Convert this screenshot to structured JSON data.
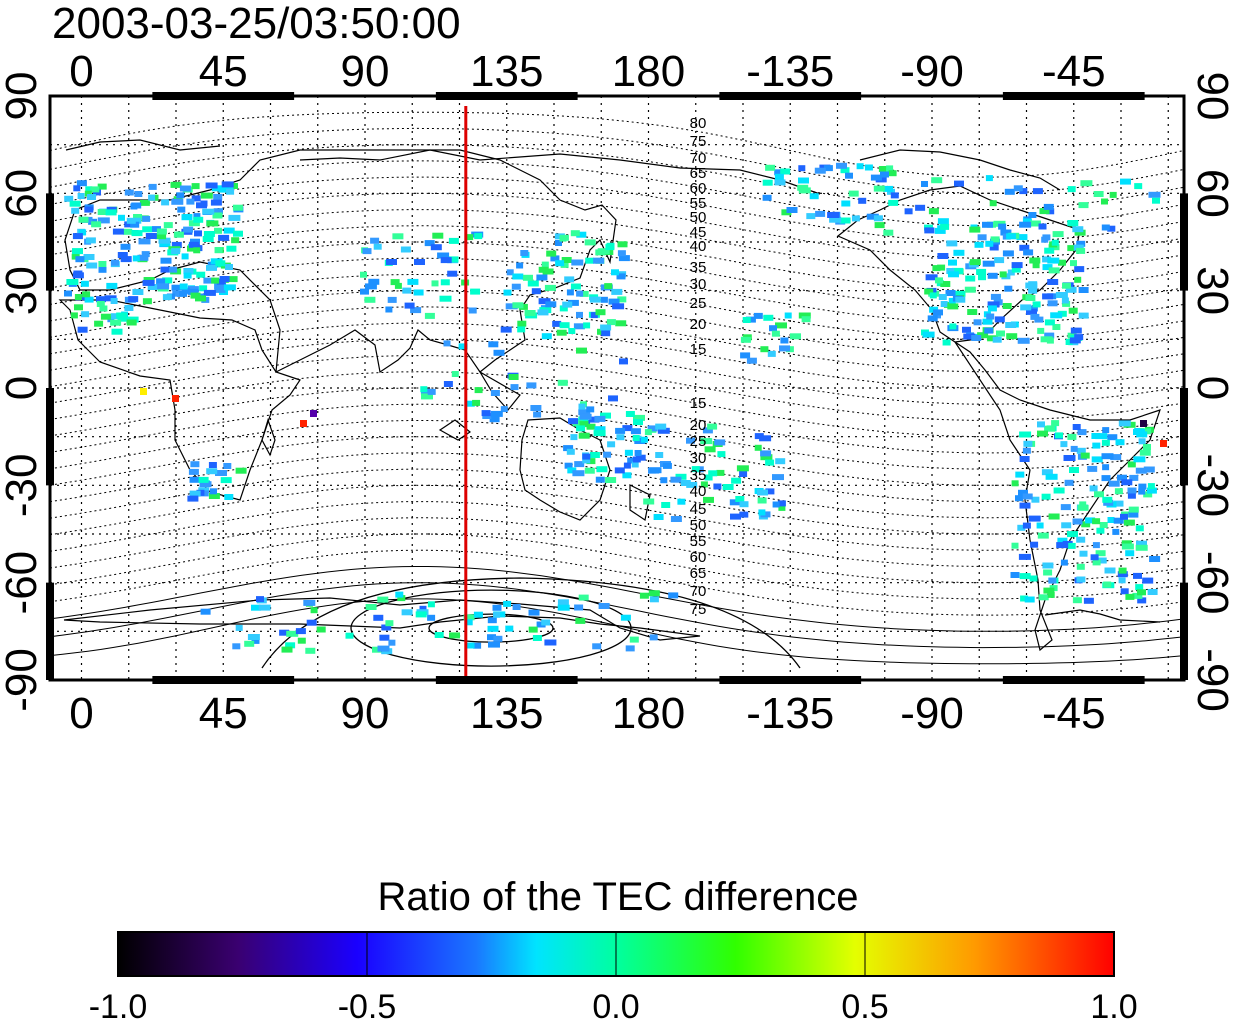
{
  "timestamp": "2003-03-25/03:50:00",
  "lon_tick_labels": [
    "0",
    "45",
    "90",
    "135",
    "180",
    "-135",
    "-90",
    "-45"
  ],
  "lat_tick_labels": [
    "90",
    "60",
    "30",
    "0",
    "-30",
    "-60",
    "-90"
  ],
  "mag_lat_labels": [
    "80",
    "75",
    "70",
    "65",
    "60",
    "55",
    "50",
    "45",
    "40",
    "35",
    "30",
    "25",
    "20",
    "15",
    "15",
    "20",
    "25",
    "30",
    "35",
    "40",
    "45",
    "50",
    "55",
    "60",
    "65",
    "70",
    "75"
  ],
  "colorbar": {
    "title": "Ratio of the TEC difference",
    "tick_labels": [
      "-1.0",
      "-0.5",
      "0.0",
      "0.5",
      "1.0"
    ],
    "range": [
      -1.0,
      1.0
    ]
  },
  "map": {
    "projection": "cylindrical equidistant",
    "lon_range": [
      -10,
      350
    ],
    "lat_range": [
      -90,
      90
    ],
    "grid": "dotted 15 degree",
    "colors": {
      "frame": "#000000",
      "coastline": "#000000",
      "meridian_marker": "#dd0000",
      "contour": "#000000"
    },
    "meridian_marker_lon": 122
  }
}
